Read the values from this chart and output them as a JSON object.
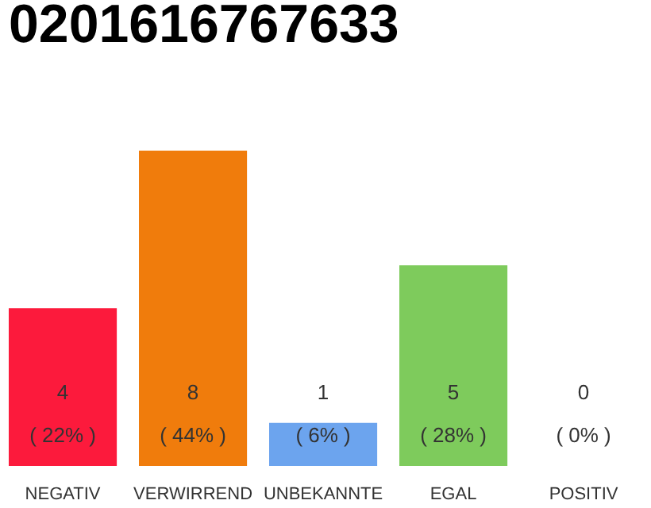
{
  "chart_data": {
    "type": "bar",
    "title": "0201616767633",
    "categories": [
      "NEGATIV",
      "VERWIRREND",
      "UNBEKANNTE",
      "EGAL",
      "POSITIV"
    ],
    "values": [
      22,
      44,
      6,
      28,
      0
    ],
    "colors": [
      "#fc1a3c",
      "#f07c0c",
      "#6ca4ee",
      "#7ecb5c",
      "#cccccc"
    ],
    "value_labels": [
      "4\n( 22% )",
      "8\n( 44% )",
      "1\n( 6% )",
      "5\n( 28% )",
      "0\n( 0% )"
    ],
    "grid": false
  }
}
